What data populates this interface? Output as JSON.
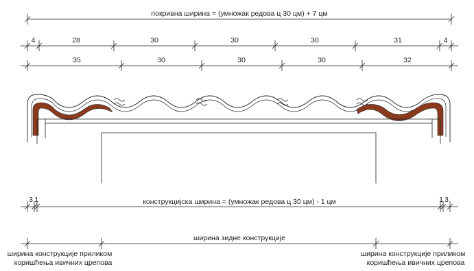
{
  "dimensions": {
    "total": {
      "label": "покривна ширина = (умножак редова ц 30 цм) + 7 цм"
    },
    "row1": [
      "4",
      "28",
      "30",
      "30",
      "30",
      "31",
      "4"
    ],
    "row2": [
      "35",
      "30",
      "30",
      "30",
      "32"
    ],
    "construction": {
      "label": "конструкцијска ширина = (умножак редова ц 30 цм) - 1 цм",
      "left_marks": [
        "3",
        "1"
      ],
      "right_marks": [
        "1",
        "3"
      ]
    },
    "wall": {
      "label": "ширина зидне конструкције"
    },
    "edge_note": {
      "left_line1": "ширина конструкције приликом",
      "left_line2": "коришћења ивичних црепова",
      "right_line1": "ширина конструкције приликом",
      "right_line2": "коришћења ивичних црепова"
    }
  },
  "colors": {
    "tile_brown": "#8b3a1e",
    "line": "#222222"
  }
}
